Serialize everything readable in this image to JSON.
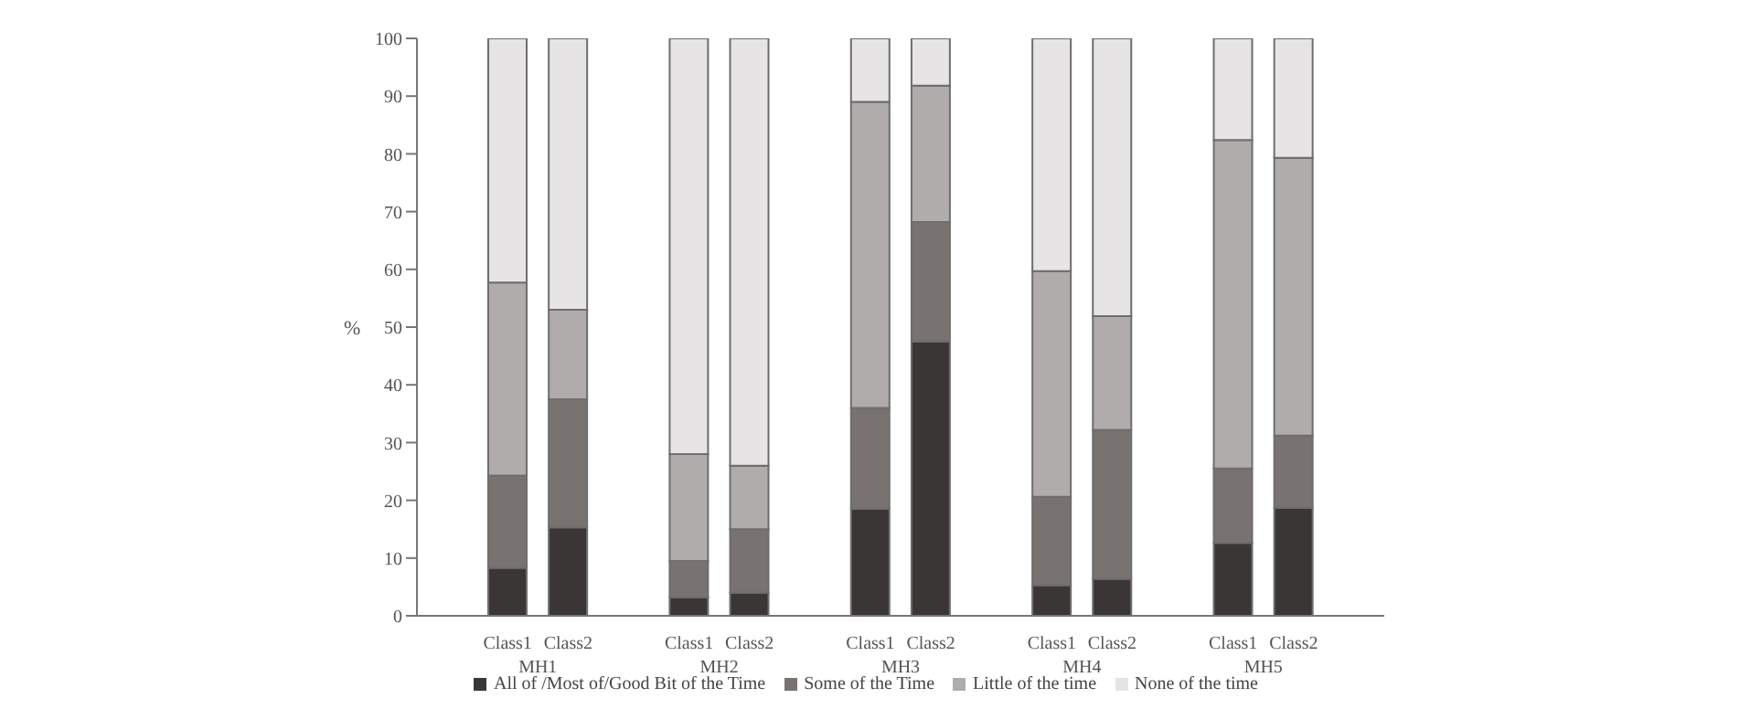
{
  "chart_data": {
    "type": "bar",
    "stacked": true,
    "ylabel": "%",
    "categories": [
      "Class1",
      "Class2",
      "Class1",
      "Class2",
      "Class1",
      "Class2",
      "Class1",
      "Class2",
      "Class1",
      "Class2"
    ],
    "annotations": [
      "MH1",
      "MH2",
      "MH3",
      "MH4",
      "MH5"
    ],
    "series": [
      {
        "name": "All of /Most of/Good Bit of the Time",
        "color": "#3a3635",
        "values": [
          8.3,
          15.3,
          3.2,
          4,
          18.5,
          47.5,
          5.3,
          6.4,
          12.6,
          18.7
        ]
      },
      {
        "name": "Some of the Time",
        "color": "#787270",
        "values": [
          16,
          22.2,
          6.3,
          11,
          17.5,
          20.7,
          15.3,
          25.8,
          12.9,
          12.5
        ]
      },
      {
        "name": "Little of the time",
        "color": "#b0acab",
        "values": [
          33.4,
          15.5,
          18.5,
          11,
          53,
          23.6,
          39.1,
          19.7,
          56.9,
          48.1
        ]
      },
      {
        "name": "None of the time",
        "color": "#e6e4e4",
        "values": [
          42.3,
          47,
          72,
          74,
          11,
          8.2,
          40.3,
          48.1,
          17.6,
          20.7
        ]
      }
    ],
    "ylim": [
      0,
      100
    ],
    "yticks": [
      0,
      10,
      20,
      30,
      40,
      50,
      60,
      70,
      80,
      90,
      100
    ],
    "grid": false,
    "legend": "bottom"
  }
}
